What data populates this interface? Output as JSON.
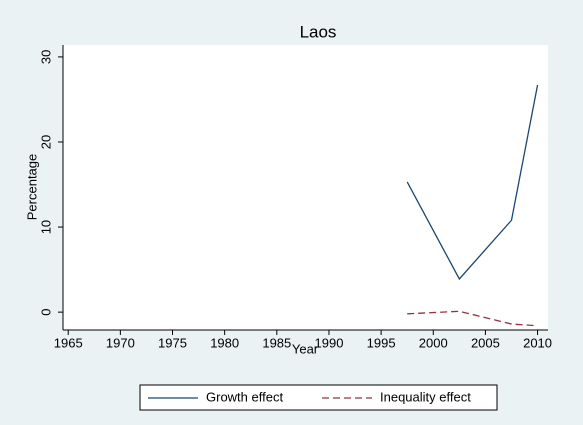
{
  "chart_data": {
    "type": "line",
    "title": "Laos",
    "x_label": "Year",
    "y_label": "Percentage",
    "x": [
      1997.5,
      2002.5,
      2007.5,
      2010
    ],
    "series": [
      {
        "name": "Growth effect",
        "color": "#1a476f",
        "dash": "solid",
        "values": [
          15.3,
          3.9,
          10.8,
          26.7
        ]
      },
      {
        "name": "Inequality effect",
        "color": "#90353b",
        "dash": "dashed",
        "values": [
          -0.2,
          0.1,
          -1.4,
          -1.6
        ]
      }
    ],
    "xlim": [
      1964.5,
      2011
    ],
    "xticks": [
      1965,
      1970,
      1975,
      1980,
      1985,
      1990,
      1995,
      2000,
      2005,
      2010
    ],
    "ylim": [
      -2.1,
      31.4
    ],
    "yticks": [
      0,
      10,
      20,
      30
    ],
    "grid": false
  }
}
